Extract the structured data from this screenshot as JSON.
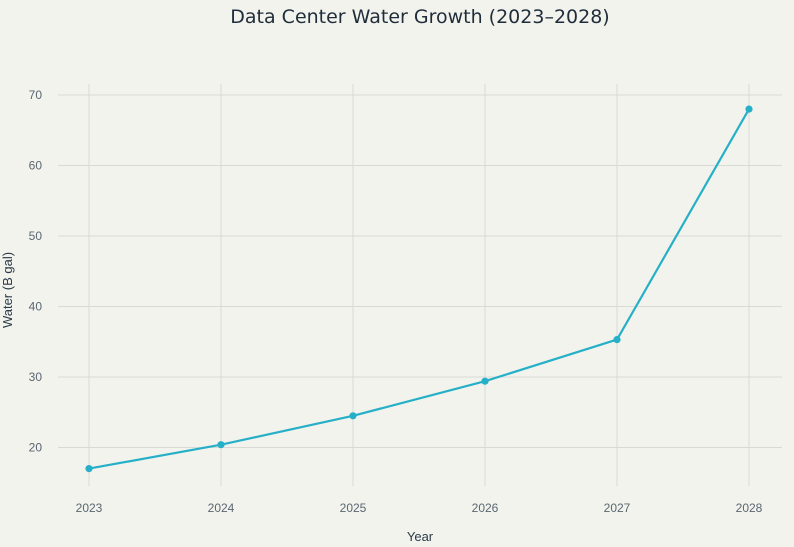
{
  "chart_data": {
    "type": "line",
    "title": "Data Center Water Growth (2023–2028)",
    "xlabel": "Year",
    "ylabel": "Water (B gal)",
    "x": [
      "2023",
      "2024",
      "2025",
      "2026",
      "2027",
      "2028"
    ],
    "y_ticks": [
      "20",
      "30",
      "40",
      "50",
      "60",
      "70"
    ],
    "ylim": [
      14.7,
      71.5
    ],
    "grid": true,
    "legend": "none",
    "series": [
      {
        "color": "#26b0c8",
        "values": [
          17.0,
          20.4,
          24.5,
          29.4,
          35.3,
          68.0
        ]
      }
    ]
  }
}
